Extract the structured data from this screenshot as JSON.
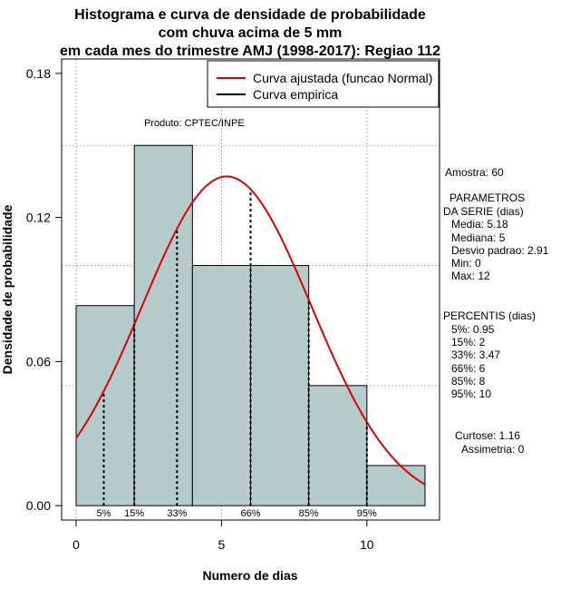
{
  "chart_data": {
    "type": "bar",
    "title_lines": [
      "Histograma e curva de densidade de probabilidade",
      "com chuva acima de 5 mm",
      "em cada mes do trimestre AMJ (1998-2017): Regiao 112"
    ],
    "xlabel": "Numero de dias",
    "ylabel": "Densidade de probabilidade",
    "xlim": [
      -0.5,
      12.5
    ],
    "ylim": [
      -0.006,
      0.186
    ],
    "x_ticks": [
      0,
      5,
      10
    ],
    "y_ticks": [
      0.0,
      0.06,
      0.12,
      0.18
    ],
    "y_tick_labels": [
      "0.00",
      "0.06",
      "0.12",
      "0.18"
    ],
    "bins": [
      {
        "start": 0,
        "end": 2,
        "density": 0.0833
      },
      {
        "start": 2,
        "end": 4,
        "density": 0.15
      },
      {
        "start": 4,
        "end": 6,
        "density": 0.1
      },
      {
        "start": 6,
        "end": 8,
        "density": 0.1
      },
      {
        "start": 8,
        "end": 10,
        "density": 0.05
      },
      {
        "start": 10,
        "end": 12,
        "density": 0.0167
      }
    ],
    "bar_color": "#b6cccc",
    "normal_curve": {
      "mean": 5.18,
      "sd": 2.91,
      "x_range": [
        0,
        12
      ],
      "color": "#dd0000"
    },
    "grid_y": [
      0.05,
      0.1,
      0.15
    ],
    "grid_x": [
      0,
      5,
      10
    ],
    "percentile_lines": [
      {
        "label": "5%",
        "x": 0.95
      },
      {
        "label": "15%",
        "x": 2
      },
      {
        "label": "33%",
        "x": 3.47
      },
      {
        "label": "66%",
        "x": 6
      },
      {
        "label": "85%",
        "x": 8
      },
      {
        "label": "95%",
        "x": 10
      }
    ],
    "legend": {
      "position": "top-right",
      "entries": [
        {
          "label": "Curva ajustada (funcao Normal)",
          "color": "#dd0000"
        },
        {
          "label": "Curva empirica",
          "color": "#000000"
        }
      ]
    },
    "annotation": "Produto: CPTEC/INPE",
    "stats": {
      "amostra": "Amostra: 60",
      "param_title_1": "PARAMETROS",
      "param_title_2": "DA SERIE (dias)",
      "media": "Media: 5.18",
      "mediana": "Mediana: 5",
      "desvio": "Desvio padrao: 2.91",
      "min": "Min: 0",
      "max": "Max: 12",
      "percentis_title": "PERCENTIS (dias)",
      "p5": "5%: 0.95",
      "p15": "15%: 2",
      "p33": "33%: 3.47",
      "p66": "66%: 6",
      "p85": "85%: 8",
      "p95": "95%: 10",
      "curtose": "Curtose: 1.16",
      "assimetria": "Assimetria: 0"
    }
  }
}
